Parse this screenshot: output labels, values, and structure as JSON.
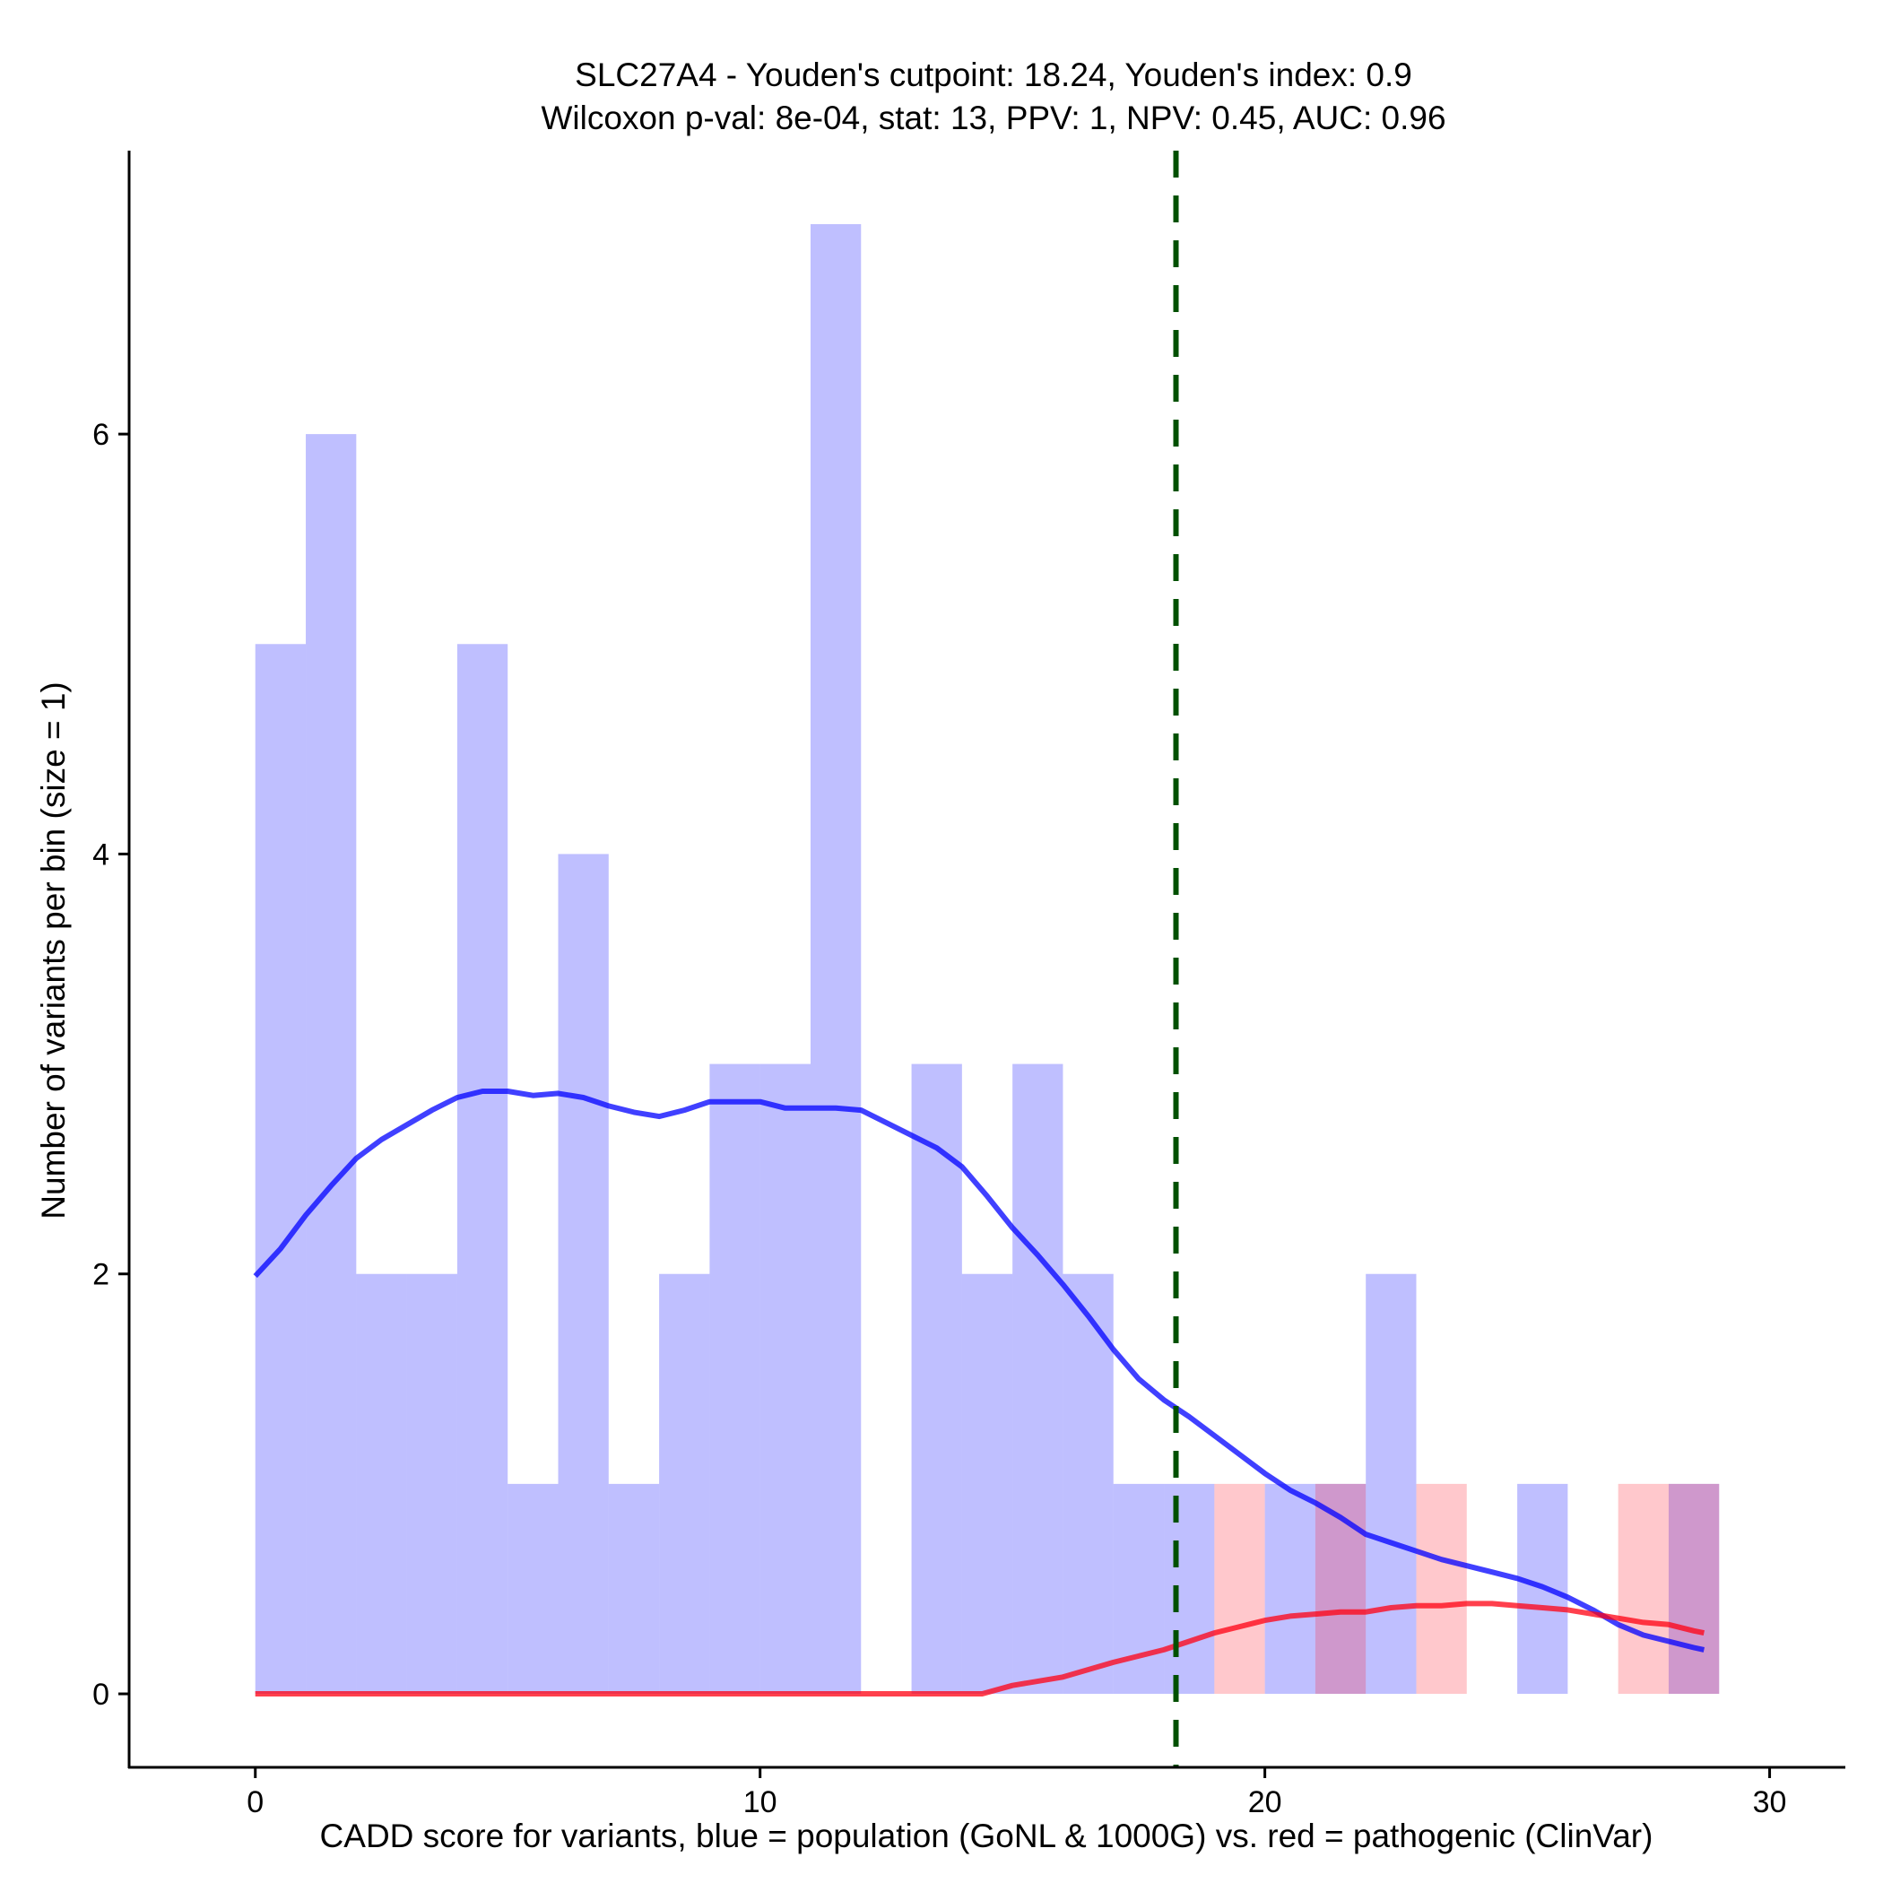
{
  "chart_data": {
    "type": "bar",
    "title_line1": "SLC27A4 - Youden's cutpoint: 18.24, Youden's index: 0.9",
    "title_line2": "Wilcoxon p-val: 8e-04, stat: 13, PPV: 1, NPV: 0.45, AUC: 0.96",
    "xlabel": "CADD score for variants, blue = population (GoNL & 1000G) vs. red = pathogenic (ClinVar)",
    "ylabel": "Number of variants per bin (size = 1)",
    "xlim": [
      -2.5,
      31.5
    ],
    "ylim": [
      -0.35,
      7.35
    ],
    "x_ticks": [
      0,
      10,
      20,
      30
    ],
    "y_ticks": [
      0,
      2,
      4,
      6
    ],
    "bin_size": 1,
    "cutpoint": 18.24,
    "series": [
      {
        "name": "population (GoNL & 1000G)",
        "color": "#0000ff",
        "bin_starts": [
          0,
          1,
          2,
          3,
          4,
          5,
          6,
          7,
          8,
          9,
          10,
          11,
          12,
          13,
          14,
          15,
          16,
          17,
          18,
          19,
          20,
          21,
          22,
          23,
          24,
          25,
          26,
          27,
          28
        ],
        "values": [
          5,
          6,
          2,
          2,
          5,
          1,
          4,
          1,
          2,
          3,
          3,
          7,
          0,
          3,
          2,
          3,
          2,
          1,
          1,
          0,
          1,
          1,
          2,
          0,
          0,
          1,
          0,
          0,
          1
        ]
      },
      {
        "name": "pathogenic (ClinVar)",
        "color": "#ff2233",
        "bin_starts": [
          19,
          21,
          23,
          27,
          28
        ],
        "values": [
          1,
          1,
          1,
          1,
          1
        ]
      }
    ],
    "density_population": {
      "x": [
        0,
        0.5,
        1,
        1.5,
        2,
        2.5,
        3,
        3.5,
        4,
        4.5,
        5,
        5.5,
        6,
        6.5,
        7,
        7.5,
        8,
        8.5,
        9,
        9.5,
        10,
        10.5,
        11,
        11.5,
        12,
        12.5,
        13,
        13.5,
        14,
        14.5,
        15,
        15.5,
        16,
        16.5,
        17,
        17.5,
        18,
        18.5,
        19,
        19.5,
        20,
        20.5,
        21,
        21.5,
        22,
        22.5,
        23,
        23.5,
        24,
        24.5,
        25,
        25.5,
        26,
        26.5,
        27,
        27.5,
        28,
        28.5,
        28.7
      ],
      "y": [
        1.99,
        2.12,
        2.28,
        2.42,
        2.55,
        2.64,
        2.71,
        2.78,
        2.84,
        2.87,
        2.87,
        2.85,
        2.86,
        2.84,
        2.8,
        2.77,
        2.75,
        2.78,
        2.82,
        2.82,
        2.82,
        2.79,
        2.79,
        2.79,
        2.78,
        2.72,
        2.66,
        2.6,
        2.51,
        2.37,
        2.22,
        2.09,
        1.95,
        1.8,
        1.64,
        1.5,
        1.4,
        1.32,
        1.23,
        1.14,
        1.05,
        0.97,
        0.91,
        0.84,
        0.76,
        0.72,
        0.68,
        0.64,
        0.61,
        0.58,
        0.55,
        0.51,
        0.46,
        0.4,
        0.33,
        0.28,
        0.25,
        0.22,
        0.21
      ]
    },
    "density_pathogenic": {
      "x": [
        0,
        2,
        4,
        6,
        8,
        10,
        12,
        14,
        14.4,
        15,
        16,
        17,
        17.5,
        18,
        18.5,
        19,
        19.5,
        20,
        20.5,
        21,
        21.5,
        22,
        22.5,
        23,
        23.5,
        24,
        24.5,
        25,
        25.5,
        26,
        26.5,
        27,
        27.5,
        28,
        28.5,
        28.7
      ],
      "y": [
        0,
        0,
        0,
        0,
        0,
        0,
        0,
        0,
        0.0,
        0.04,
        0.08,
        0.15,
        0.18,
        0.21,
        0.25,
        0.29,
        0.32,
        0.35,
        0.37,
        0.38,
        0.39,
        0.39,
        0.41,
        0.42,
        0.42,
        0.43,
        0.43,
        0.42,
        0.41,
        0.4,
        0.38,
        0.36,
        0.34,
        0.33,
        0.3,
        0.29
      ]
    }
  }
}
